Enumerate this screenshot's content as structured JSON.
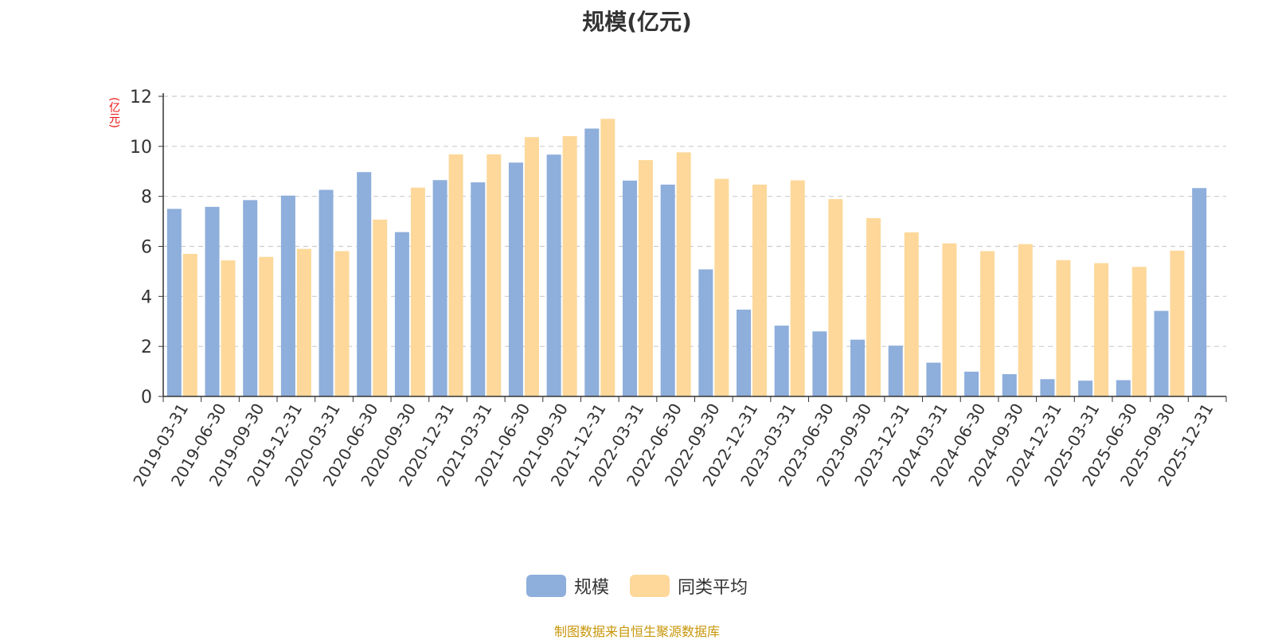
{
  "chart_data": {
    "type": "bar",
    "title": "规模(亿元)",
    "ylabel": "(亿元)",
    "ylim": [
      0,
      12
    ],
    "yticks": [
      0,
      2,
      4,
      6,
      8,
      10,
      12
    ],
    "grid": true,
    "legend_position": "bottom-center",
    "categories": [
      "2019-03-31",
      "2019-06-30",
      "2019-09-30",
      "2019-12-31",
      "2020-03-31",
      "2020-06-30",
      "2020-09-30",
      "2020-12-31",
      "2021-03-31",
      "2021-06-30",
      "2021-09-30",
      "2021-12-31",
      "2022-03-31",
      "2022-06-30",
      "2022-09-30",
      "2022-12-31",
      "2023-03-31",
      "2023-06-30",
      "2023-09-30",
      "2023-12-31",
      "2024-03-31",
      "2024-06-30",
      "2024-09-30",
      "2024-12-31",
      "2025-03-31",
      "2025-06-30",
      "2025-09-30",
      "2025-12-31"
    ],
    "series": [
      {
        "name": "规模",
        "color": "#8eaedb",
        "values": [
          7.5,
          7.58,
          7.85,
          8.03,
          8.26,
          8.97,
          6.57,
          8.65,
          8.56,
          9.35,
          9.67,
          10.71,
          8.63,
          8.47,
          5.08,
          3.47,
          2.83,
          2.6,
          2.27,
          2.03,
          1.35,
          0.99,
          0.89,
          0.69,
          0.63,
          0.65,
          3.42,
          8.33
        ]
      },
      {
        "name": "同类平均",
        "color": "#fdd89a",
        "values": [
          5.7,
          5.44,
          5.58,
          5.9,
          5.81,
          7.07,
          8.35,
          9.68,
          9.68,
          10.37,
          10.41,
          11.1,
          9.45,
          9.76,
          8.7,
          8.47,
          8.64,
          7.89,
          7.13,
          6.56,
          6.12,
          5.81,
          6.09,
          5.45,
          5.33,
          5.18,
          5.83,
          null
        ]
      }
    ]
  },
  "source_text": "制图数据来自恒生聚源数据库"
}
